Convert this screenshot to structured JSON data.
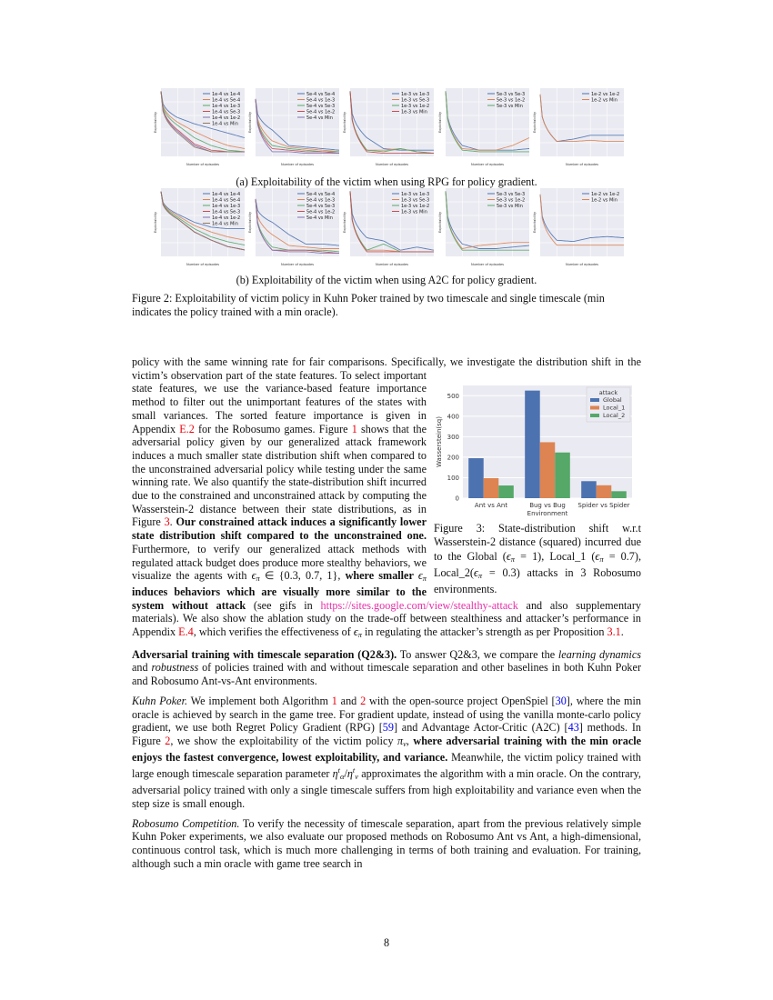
{
  "figure2": {
    "caption_a": "(a) Exploitability of the victim when using RPG for policy gradient.",
    "caption_b": "(b) Exploitability of the victim when using A2C for policy gradient.",
    "caption": "Figure 2: Exploitability of victim policy in Kuhn Poker trained by two timescale and single timescale (min indicates the policy trained with a min oracle).",
    "xlabel": "Number of episodes",
    "ylabel": "Exploitability"
  },
  "colors": [
    "#4c72b0",
    "#dd8452",
    "#55a868",
    "#c44e52",
    "#8172b3",
    "#937860"
  ],
  "figure3": {
    "caption_segs": [
      {
        "t": "Figure 3: State-distribution shift w.r.t Wasserstein-2 distance (squared) incurred due to the Global ("
      },
      {
        "t": "ϵ",
        "s": "m"
      },
      {
        "t": "π",
        "s": "sub"
      },
      {
        "t": " = 1), Local_1 ("
      },
      {
        "t": "ϵ",
        "s": "m"
      },
      {
        "t": "π",
        "s": "sub"
      },
      {
        "t": " = 0.7), Local_2("
      },
      {
        "t": "ϵ",
        "s": "m"
      },
      {
        "t": "π",
        "s": "sub"
      },
      {
        "t": " = 0.3) attacks in 3 Robosumo environments."
      }
    ]
  },
  "chart_data": [
    {
      "type": "bar",
      "title": "",
      "xlabel": "Environment",
      "ylabel": "Wasserstein(sq)",
      "categories": [
        "Ant vs Ant",
        "Bug vs Bug",
        "Spider vs Spider"
      ],
      "ylim": [
        0,
        550
      ],
      "yticks": [
        0,
        100,
        200,
        300,
        400,
        500
      ],
      "grid": true,
      "legend_title": "attack",
      "legend_position": "top-right",
      "series": [
        {
          "name": "Global",
          "color": "#4c72b0",
          "values": [
            195,
            525,
            83
          ]
        },
        {
          "name": "Local_1",
          "color": "#dd8452",
          "values": [
            98,
            273,
            63
          ]
        },
        {
          "name": "Local_2",
          "color": "#55a868",
          "values": [
            62,
            223,
            34
          ]
        }
      ]
    },
    {
      "type": "line",
      "group": "a",
      "x": [
        0,
        2,
        4,
        6,
        8,
        10
      ],
      "ylim": [
        0.08,
        0.52
      ],
      "series": [
        {
          "name": "1e-4 vs 1e-4",
          "values": [
            0.5,
            0.33,
            0.29,
            0.26,
            0.23,
            0.2
          ]
        },
        {
          "name": "1e-4 vs 5e-4",
          "values": [
            0.5,
            0.3,
            0.24,
            0.19,
            0.15,
            0.13
          ]
        },
        {
          "name": "1e-4 vs 1e-3",
          "values": [
            0.5,
            0.28,
            0.2,
            0.15,
            0.12,
            0.11
          ]
        },
        {
          "name": "1e-4 vs 5e-3",
          "values": [
            0.5,
            0.25,
            0.16,
            0.12,
            0.11,
            0.11
          ]
        },
        {
          "name": "1e-4 vs 1e-2",
          "values": [
            0.5,
            0.24,
            0.15,
            0.11,
            0.11,
            0.11
          ]
        },
        {
          "name": "1e-4 vs Min",
          "values": [
            0.5,
            0.23,
            0.14,
            0.11,
            0.11,
            0.11
          ]
        }
      ]
    },
    {
      "type": "line",
      "group": "a",
      "x": [
        0,
        2,
        4,
        6,
        8,
        10
      ],
      "ylim": [
        0.08,
        0.52
      ],
      "series": [
        {
          "name": "5e-4 vs 5e-4",
          "values": [
            0.45,
            0.25,
            0.15,
            0.14,
            0.13,
            0.12
          ]
        },
        {
          "name": "5e-4 vs 1e-3",
          "values": [
            0.45,
            0.18,
            0.14,
            0.13,
            0.12,
            0.11
          ]
        },
        {
          "name": "5e-4 vs 5e-3",
          "values": [
            0.45,
            0.15,
            0.13,
            0.12,
            0.11,
            0.11
          ]
        },
        {
          "name": "5e-4 vs 1e-2",
          "values": [
            0.45,
            0.13,
            0.12,
            0.11,
            0.11,
            0.1
          ]
        },
        {
          "name": "5e-4 vs Min",
          "values": [
            0.45,
            0.11,
            0.11,
            0.1,
            0.1,
            0.1
          ]
        }
      ]
    },
    {
      "type": "line",
      "group": "a",
      "x": [
        0,
        2,
        4,
        6,
        8,
        10
      ],
      "ylim": [
        0.08,
        0.52
      ],
      "series": [
        {
          "name": "1e-3 vs 1e-3",
          "values": [
            0.5,
            0.2,
            0.13,
            0.12,
            0.12,
            0.12
          ]
        },
        {
          "name": "1e-3 vs 5e-3",
          "values": [
            0.5,
            0.12,
            0.12,
            0.13,
            0.11,
            0.1
          ]
        },
        {
          "name": "1e-3 vs 1e-2",
          "values": [
            0.5,
            0.12,
            0.11,
            0.13,
            0.11,
            0.1
          ]
        },
        {
          "name": "1e-3 vs Min",
          "values": [
            0.5,
            0.11,
            0.1,
            0.1,
            0.1,
            0.1
          ]
        }
      ]
    },
    {
      "type": "line",
      "group": "a",
      "x": [
        0,
        2,
        4,
        6,
        8,
        10
      ],
      "ylim": [
        0.08,
        0.52
      ],
      "series": [
        {
          "name": "5e-3 vs 5e-3",
          "values": [
            0.5,
            0.15,
            0.12,
            0.12,
            0.12,
            0.13
          ]
        },
        {
          "name": "5e-3 vs 1e-2",
          "values": [
            0.5,
            0.13,
            0.12,
            0.12,
            0.15,
            0.2
          ]
        },
        {
          "name": "5e-3 vs Min",
          "values": [
            0.5,
            0.12,
            0.11,
            0.11,
            0.11,
            0.11
          ]
        }
      ]
    },
    {
      "type": "line",
      "group": "a",
      "x": [
        0,
        2,
        4,
        6,
        8,
        10
      ],
      "ylim": [
        0.0,
        0.55
      ],
      "series": [
        {
          "name": "1e-2 vs 1e-2",
          "values": [
            0.5,
            0.12,
            0.14,
            0.17,
            0.17,
            0.17
          ]
        },
        {
          "name": "1e-2 vs Min",
          "values": [
            0.5,
            0.12,
            0.12,
            0.13,
            0.12,
            0.12
          ]
        }
      ]
    },
    {
      "type": "line",
      "group": "b",
      "x": [
        0,
        2,
        4,
        6,
        8,
        10
      ],
      "ylim": [
        0.1,
        0.52
      ],
      "series": [
        {
          "name": "1e-4 vs 1e-4",
          "values": [
            0.5,
            0.36,
            0.31,
            0.28,
            0.27,
            0.27
          ]
        },
        {
          "name": "1e-4 vs 5e-4",
          "values": [
            0.5,
            0.35,
            0.29,
            0.25,
            0.22,
            0.2
          ]
        },
        {
          "name": "1e-4 vs 1e-3",
          "values": [
            0.5,
            0.34,
            0.27,
            0.22,
            0.19,
            0.17
          ]
        },
        {
          "name": "1e-4 vs 5e-3",
          "values": [
            0.5,
            0.33,
            0.25,
            0.2,
            0.16,
            0.14
          ]
        },
        {
          "name": "1e-4 vs 1e-2",
          "values": [
            0.5,
            0.33,
            0.25,
            0.2,
            0.16,
            0.14
          ]
        },
        {
          "name": "1e-4 vs Min",
          "values": [
            0.5,
            0.33,
            0.25,
            0.2,
            0.16,
            0.14
          ]
        }
      ]
    },
    {
      "type": "line",
      "group": "b",
      "x": [
        0,
        2,
        4,
        6,
        8,
        10
      ],
      "ylim": [
        0.08,
        0.52
      ],
      "series": [
        {
          "name": "5e-4 vs 5e-4",
          "values": [
            0.45,
            0.3,
            0.22,
            0.16,
            0.16,
            0.15
          ]
        },
        {
          "name": "5e-4 vs 1e-3",
          "values": [
            0.45,
            0.22,
            0.15,
            0.14,
            0.13,
            0.13
          ]
        },
        {
          "name": "5e-4 vs 5e-3",
          "values": [
            0.45,
            0.14,
            0.12,
            0.12,
            0.12,
            0.11
          ]
        },
        {
          "name": "5e-4 vs 1e-2",
          "values": [
            0.45,
            0.12,
            0.12,
            0.12,
            0.11,
            0.1
          ]
        },
        {
          "name": "5e-4 vs Min",
          "values": [
            0.45,
            0.12,
            0.11,
            0.11,
            0.1,
            0.1
          ]
        }
      ]
    },
    {
      "type": "line",
      "group": "b",
      "x": [
        0,
        2,
        4,
        6,
        8,
        10
      ],
      "ylim": [
        0.08,
        0.52
      ],
      "series": [
        {
          "name": "1e-3 vs 1e-3",
          "values": [
            0.5,
            0.2,
            0.18,
            0.12,
            0.14,
            0.12
          ]
        },
        {
          "name": "1e-3 vs 5e-3",
          "values": [
            0.5,
            0.12,
            0.12,
            0.11,
            0.11,
            0.11
          ]
        },
        {
          "name": "1e-3 vs 1e-2",
          "values": [
            0.5,
            0.12,
            0.16,
            0.11,
            0.11,
            0.11
          ]
        },
        {
          "name": "1e-3 vs Min",
          "values": [
            0.5,
            0.11,
            0.11,
            0.11,
            0.11,
            0.11
          ]
        }
      ]
    },
    {
      "type": "line",
      "group": "b",
      "x": [
        0,
        2,
        4,
        6,
        8,
        10
      ],
      "ylim": [
        0.08,
        0.52
      ],
      "series": [
        {
          "name": "5e-3 vs 5e-3",
          "values": [
            0.5,
            0.16,
            0.13,
            0.13,
            0.14,
            0.15
          ]
        },
        {
          "name": "5e-3 vs 1e-2",
          "values": [
            0.5,
            0.13,
            0.15,
            0.16,
            0.17,
            0.17
          ]
        },
        {
          "name": "5e-3 vs Min",
          "values": [
            0.5,
            0.12,
            0.12,
            0.12,
            0.12,
            0.12
          ]
        }
      ]
    },
    {
      "type": "line",
      "group": "b",
      "x": [
        0,
        2,
        4,
        6,
        8,
        10
      ],
      "ylim": [
        0.0,
        0.55
      ],
      "series": [
        {
          "name": "1e-2 vs 1e-2",
          "values": [
            0.5,
            0.13,
            0.12,
            0.15,
            0.16,
            0.15
          ]
        },
        {
          "name": "1e-2 vs Min",
          "values": [
            0.5,
            0.09,
            0.09,
            0.09,
            0.09,
            0.09
          ]
        }
      ]
    }
  ],
  "paragraphs": [
    {
      "segs": [
        {
          "t": "policy with the same winning rate for fair comparisons. Specifically, we investigate the distribution shift in the victim’s observation part of the state features. To select important state features, we use the variance-based feature importance method to filter out the unimportant features of the states with small variances. The sorted feature importance is given in Appendix "
        },
        {
          "t": "E.2",
          "s": "r"
        },
        {
          "t": " for the Robosumo games. Figure "
        },
        {
          "t": "1",
          "s": "r"
        },
        {
          "t": " shows that the adversarial policy given by our generalized attack framework induces a much smaller state distribution shift when compared to the unconstrained adversarial policy while testing under the same winning rate. We also quantify the state-distribution shift incurred due to the constrained and unconstrained attack by computing the Wasserstein-2 distance between their state distributions, as in Figure "
        },
        {
          "t": "3",
          "s": "r"
        },
        {
          "t": ". "
        },
        {
          "t": "Our constrained attack induces a significantly lower state distribution shift compared to the unconstrained one.",
          "s": "b"
        },
        {
          "t": " Furthermore, to verify our generalized attack methods with regulated attack budget does produce more stealthy behaviors, we visualize the agents with "
        },
        {
          "t": "ϵ",
          "s": "m"
        },
        {
          "t": "π",
          "s": "sub"
        },
        {
          "t": " ∈ {0.3, 0.7, 1}, "
        },
        {
          "t": "where smaller ",
          "s": "b"
        },
        {
          "t": "ϵ",
          "s": "m"
        },
        {
          "t": "π",
          "s": "sub"
        },
        {
          "t": " induces behaviors which are visually more similar to the system without attack",
          "s": "b"
        },
        {
          "t": " (see gifs in "
        },
        {
          "t": "https://sites.google.com/view/stealthy-attack",
          "s": "p"
        },
        {
          "t": " and also supplementary materials). We also show the ablation study on the trade-off between stealthiness and attacker’s performance in Appendix "
        },
        {
          "t": "E.4",
          "s": "r"
        },
        {
          "t": ", which verifies the effectiveness of "
        },
        {
          "t": "ϵ",
          "s": "m"
        },
        {
          "t": "π",
          "s": "sub"
        },
        {
          "t": " in regulating the attacker’s strength as per Proposition "
        },
        {
          "t": "3.1",
          "s": "r"
        },
        {
          "t": "."
        }
      ]
    },
    {
      "segs": [
        {
          "t": "Adversarial training with timescale separation (Q2&3).",
          "s": "b"
        },
        {
          "t": " To answer Q2&3, we compare the "
        },
        {
          "t": "learning dynamics",
          "s": "i"
        },
        {
          "t": " and "
        },
        {
          "t": "robustness",
          "s": "i"
        },
        {
          "t": " of policies trained with and without timescale separation and other baselines in both Kuhn Poker and Robosumo Ant-vs-Ant environments."
        }
      ]
    },
    {
      "segs": [
        {
          "t": "Kuhn Poker.",
          "s": "i"
        },
        {
          "t": " We implement both Algorithm "
        },
        {
          "t": "1",
          "s": "r"
        },
        {
          "t": " and "
        },
        {
          "t": "2",
          "s": "r"
        },
        {
          "t": " with the open-source project OpenSpiel ["
        },
        {
          "t": "30",
          "s": "bl"
        },
        {
          "t": "], where the min oracle is achieved by search in the game tree. For gradient update, instead of using the vanilla monte-carlo policy gradient, we use both Regret Policy Gradient (RPG) ["
        },
        {
          "t": "59",
          "s": "bl"
        },
        {
          "t": "] and Advantage Actor-Critic (A2C) ["
        },
        {
          "t": "43",
          "s": "bl"
        },
        {
          "t": "] methods. In Figure "
        },
        {
          "t": "2",
          "s": "r"
        },
        {
          "t": ", we show the exploitability of the victim policy "
        },
        {
          "t": "π",
          "s": "m"
        },
        {
          "t": "ν",
          "s": "sub"
        },
        {
          "t": ", "
        },
        {
          "t": "where adversarial training with the min oracle enjoys the fastest convergence, lowest exploitability, and variance.",
          "s": "b"
        },
        {
          "t": " Meanwhile, the victim policy trained with large enough timescale separation parameter "
        },
        {
          "t": "η",
          "s": "m"
        },
        {
          "t": "t",
          "s": "sup"
        },
        {
          "t": "α",
          "s": "sub"
        },
        {
          "t": "/"
        },
        {
          "t": "η",
          "s": "m"
        },
        {
          "t": "t",
          "s": "sup"
        },
        {
          "t": "ν",
          "s": "sub"
        },
        {
          "t": " approximates the algorithm with a min oracle. On the contrary, adversarial policy trained with only a single timescale suffers from high exploitability and variance even when the step size is small enough."
        }
      ]
    },
    {
      "segs": [
        {
          "t": "Robosumo Competition.",
          "s": "i"
        },
        {
          "t": " To verify the necessity of timescale separation, apart from the previous relatively simple Kuhn Poker experiments, we also evaluate our proposed methods on Robosumo Ant vs Ant, a high-dimensional, continuous control task, which is much more challenging in terms of both training and evaluation. For training, although such a min oracle with game tree search in"
        }
      ]
    }
  ],
  "page_number": "8"
}
